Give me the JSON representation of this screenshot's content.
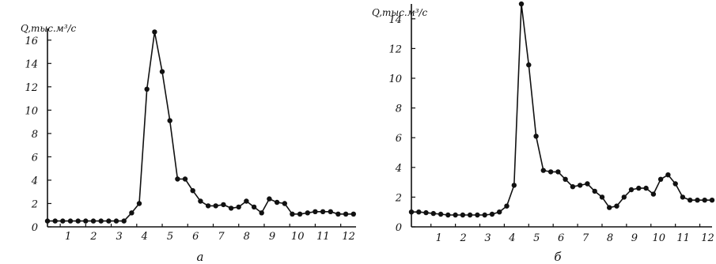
{
  "chart_data": [
    {
      "type": "line",
      "ylabel": "Q,тыс.м³/с",
      "panel_label": "а",
      "ylim": [
        0,
        17
      ],
      "yticks": [
        "0",
        "2",
        "4",
        "6",
        "8",
        "10",
        "12",
        "14",
        "16"
      ],
      "xlim": [
        0.5,
        12.6
      ],
      "xticks": [
        "1",
        "2",
        "3",
        "4",
        "5",
        "6",
        "7",
        "8",
        "9",
        "10",
        "11",
        "12"
      ],
      "x": [
        0.5,
        0.8,
        1.1,
        1.4,
        1.7,
        2.0,
        2.3,
        2.6,
        2.9,
        3.2,
        3.5,
        3.8,
        4.1,
        4.4,
        4.7,
        5.0,
        5.3,
        5.6,
        5.9,
        6.2,
        6.5,
        6.8,
        7.1,
        7.4,
        7.7,
        8.0,
        8.3,
        8.6,
        8.9,
        9.2,
        9.5,
        9.8,
        10.1,
        10.4,
        10.7,
        11.0,
        11.3,
        11.6,
        11.9,
        12.2,
        12.5
      ],
      "y": [
        0.5,
        0.5,
        0.5,
        0.5,
        0.5,
        0.5,
        0.5,
        0.5,
        0.5,
        0.5,
        0.5,
        1.2,
        2.0,
        11.8,
        16.7,
        13.3,
        9.1,
        4.1,
        4.1,
        3.1,
        2.2,
        1.8,
        1.8,
        1.9,
        1.6,
        1.7,
        2.2,
        1.7,
        1.2,
        2.4,
        2.1,
        2.0,
        1.1,
        1.1,
        1.2,
        1.3,
        1.3,
        1.3,
        1.1,
        1.1,
        1.1
      ]
    },
    {
      "type": "line",
      "ylabel": "Q,тыс.м³/с",
      "panel_label": "б",
      "ylim": [
        0,
        15
      ],
      "yticks": [
        "0",
        "2",
        "4",
        "6",
        "8",
        "10",
        "12",
        "14"
      ],
      "xlim": [
        0.2,
        12.5
      ],
      "xticks": [
        "1",
        "2",
        "3",
        "4",
        "5",
        "6",
        "7",
        "8",
        "9",
        "10",
        "11",
        "12"
      ],
      "x": [
        0.2,
        0.5,
        0.8,
        1.1,
        1.4,
        1.7,
        2.0,
        2.3,
        2.6,
        2.9,
        3.2,
        3.5,
        3.8,
        4.1,
        4.4,
        4.7,
        5.0,
        5.3,
        5.6,
        5.9,
        6.2,
        6.5,
        6.8,
        7.1,
        7.4,
        7.7,
        8.0,
        8.3,
        8.6,
        8.9,
        9.2,
        9.5,
        9.8,
        10.1,
        10.4,
        10.7,
        11.0,
        11.3,
        11.6,
        11.9,
        12.2,
        12.5
      ],
      "y": [
        1.0,
        1.0,
        0.95,
        0.9,
        0.85,
        0.8,
        0.8,
        0.8,
        0.8,
        0.8,
        0.8,
        0.85,
        1.0,
        1.4,
        2.8,
        15.0,
        10.9,
        6.1,
        3.8,
        3.7,
        3.7,
        3.2,
        2.7,
        2.8,
        2.9,
        2.4,
        2.0,
        1.3,
        1.4,
        2.0,
        2.5,
        2.6,
        2.6,
        2.2,
        3.2,
        3.5,
        2.9,
        2.0,
        1.8,
        1.8,
        1.8,
        1.8
      ]
    }
  ]
}
